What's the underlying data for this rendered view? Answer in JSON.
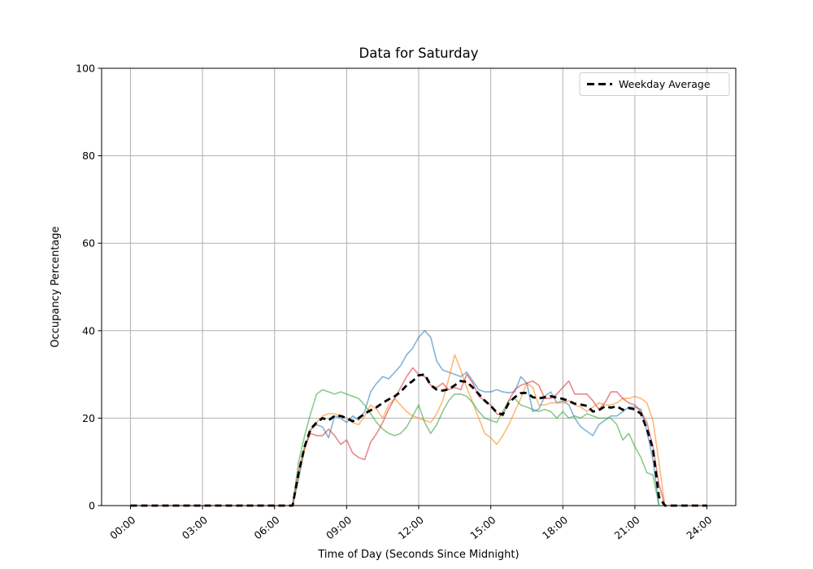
{
  "chart": {
    "title": "Data for Saturday",
    "xlabel": "Time of Day (Seconds Since Midnight)",
    "ylabel": "Occupancy Percentage",
    "x_tick_labels": [
      "00:00",
      "03:00",
      "06:00",
      "09:00",
      "12:00",
      "15:00",
      "18:00",
      "21:00",
      "24:00"
    ],
    "y_tick_labels": [
      "0",
      "20",
      "40",
      "60",
      "80",
      "100"
    ],
    "legend": {
      "label": "Weekday Average"
    }
  },
  "chart_data": {
    "type": "line",
    "title": "Data for Saturday",
    "xlabel": "Time of Day (Seconds Since Midnight)",
    "ylabel": "Occupancy Percentage",
    "ylim": [
      0,
      100
    ],
    "xlim_hours": [
      -1.2,
      25.2
    ],
    "x_ticks_hours": [
      0,
      3,
      6,
      9,
      12,
      15,
      18,
      21,
      24
    ],
    "y_ticks": [
      0,
      20,
      40,
      60,
      80,
      100
    ],
    "grid": true,
    "legend_position": "upper right",
    "x_start_hour": 0,
    "x_step_hours": 0.25,
    "series": [
      {
        "name": "line-blue",
        "color": "rgba(31,119,180,0.55)",
        "style": "solid",
        "width": 1.6,
        "values": [
          0,
          0,
          0,
          0,
          0,
          0,
          0,
          0,
          0,
          0,
          0,
          0,
          0,
          0,
          0,
          0,
          0,
          0,
          0,
          0,
          0,
          0,
          0,
          0,
          0,
          0,
          0,
          0,
          6,
          13,
          17.5,
          18.5,
          18,
          15.5,
          20.5,
          20,
          19,
          20.5,
          19.5,
          21.5,
          26,
          28,
          29.5,
          29,
          30.5,
          32,
          34.5,
          36,
          38.5,
          40,
          38.5,
          33,
          31,
          30.5,
          30,
          29.5,
          30.5,
          28.5,
          26.5,
          26,
          26,
          26.5,
          26,
          25.8,
          26,
          29.5,
          28,
          21.5,
          22,
          25,
          26,
          23.5,
          24,
          23,
          20,
          18,
          17,
          16,
          18.5,
          19.5,
          20.5,
          20.5,
          21.5,
          22.5,
          22.5,
          22,
          17,
          10.5,
          0,
          0,
          0,
          0,
          0,
          0,
          0,
          0,
          0
        ]
      },
      {
        "name": "line-orange",
        "color": "rgba(255,127,14,0.55)",
        "style": "solid",
        "width": 1.6,
        "values": [
          0,
          0,
          0,
          0,
          0,
          0,
          0,
          0,
          0,
          0,
          0,
          0,
          0,
          0,
          0,
          0,
          0,
          0,
          0,
          0,
          0,
          0,
          0,
          0,
          0,
          0,
          0,
          0,
          7,
          13,
          17,
          19,
          20.5,
          21,
          21,
          20.5,
          20,
          19,
          18.5,
          20.5,
          23,
          22,
          20,
          23,
          24.5,
          23,
          21.5,
          20.5,
          20,
          19.5,
          19,
          21,
          24,
          29,
          34.5,
          31,
          27,
          23.5,
          20,
          16.5,
          15.5,
          14,
          16,
          18.5,
          21.5,
          24.5,
          28,
          27,
          23,
          23,
          23.5,
          23.5,
          23.5,
          24,
          23,
          22.5,
          21.5,
          22.5,
          23.5,
          23,
          23,
          23.5,
          24.5,
          24.5,
          25,
          24.5,
          23.5,
          19.5,
          10,
          0,
          0,
          0,
          0,
          0,
          0,
          0,
          0
        ]
      },
      {
        "name": "line-green",
        "color": "rgba(44,160,44,0.55)",
        "style": "solid",
        "width": 1.6,
        "values": [
          0,
          0,
          0,
          0,
          0,
          0,
          0,
          0,
          0,
          0,
          0,
          0,
          0,
          0,
          0,
          0,
          0,
          0,
          0,
          0,
          0,
          0,
          0,
          0,
          0,
          0,
          0,
          0,
          10,
          16,
          21,
          25.5,
          26.5,
          26,
          25.5,
          26,
          25.5,
          25,
          24.5,
          23,
          21,
          19,
          17.5,
          16.5,
          16,
          16.5,
          18,
          20.5,
          23,
          19,
          16.5,
          18.5,
          21.5,
          24,
          25.5,
          25.5,
          25,
          23.5,
          21.5,
          20,
          19.5,
          19,
          21.5,
          24,
          24.5,
          23,
          22.5,
          22,
          21.5,
          22,
          21.5,
          20,
          21.5,
          20,
          20.5,
          20,
          21,
          20.5,
          20,
          20,
          20,
          18.5,
          15,
          16.5,
          13.5,
          11,
          7.5,
          7,
          0,
          0,
          0,
          0,
          0,
          0,
          0,
          0,
          0
        ]
      },
      {
        "name": "line-red",
        "color": "rgba(214,39,40,0.55)",
        "style": "solid",
        "width": 1.6,
        "values": [
          0,
          0,
          0,
          0,
          0,
          0,
          0,
          0,
          0,
          0,
          0,
          0,
          0,
          0,
          0,
          0,
          0,
          0,
          0,
          0,
          0,
          0,
          0,
          0,
          0,
          0,
          0,
          0,
          8,
          13.5,
          16.5,
          16,
          16,
          17.5,
          16,
          14,
          15,
          12,
          11,
          10.5,
          14.5,
          16.5,
          19,
          22,
          24.5,
          27,
          29.5,
          31.5,
          30,
          29.5,
          27.5,
          27,
          28,
          26.5,
          27,
          26.5,
          30,
          28,
          25,
          24,
          23,
          21,
          20.5,
          24,
          26.5,
          27.5,
          28,
          28.5,
          27.5,
          24.5,
          24.5,
          25.5,
          27,
          28.5,
          25.5,
          25.5,
          25.5,
          24,
          22,
          23.5,
          26,
          26,
          24.5,
          23.5,
          23,
          21.5,
          19,
          13.5,
          5,
          0,
          0,
          0,
          0,
          0,
          0,
          0,
          0
        ]
      },
      {
        "name": "Weekday Average",
        "color": "#000000",
        "style": "dashed",
        "width": 2.8,
        "values": [
          0,
          0,
          0,
          0,
          0,
          0,
          0,
          0,
          0,
          0,
          0,
          0,
          0,
          0,
          0,
          0,
          0,
          0,
          0,
          0,
          0,
          0,
          0,
          0,
          0,
          0,
          0,
          0,
          7.5,
          13.5,
          17.5,
          19,
          20,
          19.5,
          20.5,
          20.5,
          20,
          19.3,
          20,
          21,
          21.8,
          22.5,
          23.5,
          24.3,
          25,
          26,
          27.5,
          28.5,
          29.8,
          30,
          27.5,
          26.5,
          26.3,
          26.6,
          27.5,
          28.5,
          28.3,
          27,
          25.5,
          24,
          22.8,
          21.3,
          20.8,
          23.5,
          24.8,
          25.7,
          25.8,
          24.8,
          24.5,
          24.8,
          25,
          24.7,
          24.4,
          23.9,
          23.3,
          23.1,
          22.8,
          21.5,
          21.8,
          22.7,
          22.4,
          22.7,
          21.9,
          22.3,
          22,
          21,
          17.5,
          13,
          2,
          0,
          0,
          0,
          0,
          0,
          0,
          0,
          0
        ]
      }
    ]
  }
}
